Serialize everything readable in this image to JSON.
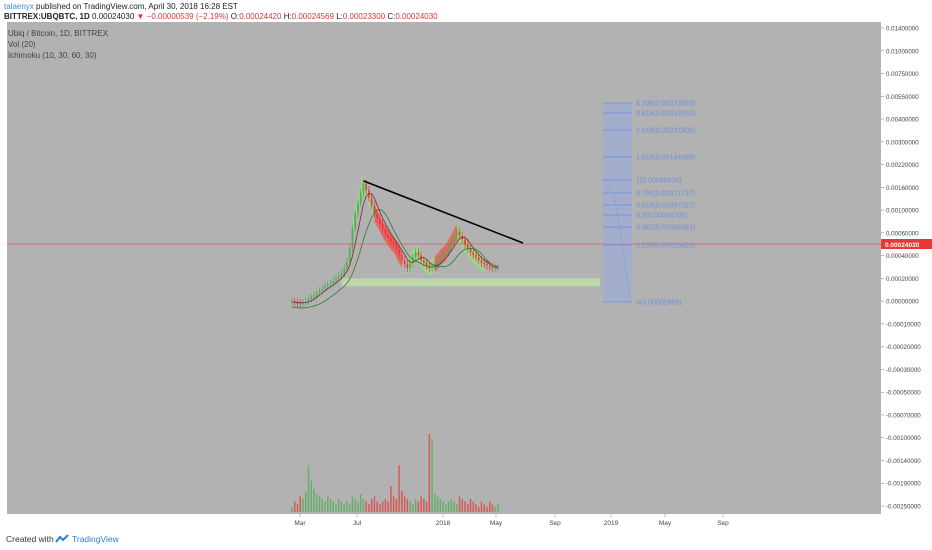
{
  "header": {
    "author": "talaenyx",
    "published_text": "published on TradingView.com, April 30, 2018 16:28 EST",
    "symbol": "BITTREX:UBQBTC, 1D",
    "last": "0.00024030",
    "change": "▼ −0.00000539 (−2.19%)",
    "o_label": "O:",
    "o": "0.00024420",
    "h_label": "H:",
    "h": "0.00024569",
    "l_label": "L:",
    "l": "0.00023300",
    "c_label": "C:",
    "c": "0.00024030"
  },
  "legend": {
    "title": "Ubiq / Bitcoin, 1D, BITTREX",
    "vol": "Vol (20)",
    "ichimoku": "Ichimoku (10, 30, 60, 30)"
  },
  "colors": {
    "background": "#b2b2b2",
    "up": "#4caf50",
    "down": "#e53935",
    "cloud_up": "#9bd68a",
    "cloud_down": "#ef5b5b",
    "fib": "#6b8fe0",
    "fib_fill": "#8fa9ea",
    "trendline": "#000000",
    "price_line": "#e53935",
    "support_zone": "#bfe4a8"
  },
  "chart_data": {
    "type": "candlestick",
    "x_tick_labels": [
      "Mar",
      "Jul",
      "2018",
      "May",
      "Sep",
      "2019",
      "May",
      "Sep"
    ],
    "y_tick_labels": [
      "0.01400000",
      "0.01000000",
      "0.00750000",
      "0.00550000",
      "0.00400000",
      "0.00300000",
      "0.00220000",
      "0.00160000",
      "0.00100000",
      "0.00060000",
      "0.00040000",
      "0.00020000",
      "0.00000000",
      "-0.00010000",
      "-0.00020000",
      "-0.00030000",
      "-0.00050000",
      "-0.00070000",
      "-0.00100000",
      "-0.00140000",
      "-0.00190000",
      "-0.00250000"
    ],
    "current_price": "0.00024030",
    "fib_levels": [
      {
        "label": "4.236(0.00373389)"
      },
      {
        "label": "3.618(0.00319350)"
      },
      {
        "label": "2.618(0.00231909)"
      },
      {
        "label": "1.618(0.00144468)"
      },
      {
        "label": "1(0.00090430)"
      },
      {
        "label": "0.786(0.00071717)"
      },
      {
        "label": "0.618(0.00057027)"
      },
      {
        "label": "0.5(0.00046709)"
      },
      {
        "label": "0.382(0.00036391)"
      },
      {
        "label": "0.236(0.00023625)"
      },
      {
        "label": "0(0.00002989)"
      }
    ],
    "price_series": [
      4,
      3.5,
      3,
      2.6,
      3.2,
      4.5,
      6,
      7.5,
      9,
      11,
      12.5,
      14,
      16,
      17,
      18,
      20,
      22,
      24,
      26,
      30,
      35,
      45,
      60,
      72,
      80,
      88,
      95,
      90,
      84,
      78,
      72,
      68,
      64,
      60,
      56,
      53,
      50,
      48,
      44,
      40,
      36,
      33,
      30,
      34,
      38,
      42,
      40,
      36,
      34,
      32,
      30,
      31,
      33,
      35,
      38,
      40,
      42,
      46,
      50,
      54,
      58,
      55,
      52,
      48,
      45,
      42,
      40,
      38,
      36,
      34,
      33,
      32,
      31,
      30,
      30.5,
      31
    ],
    "volume_series": [
      2,
      4,
      3,
      6,
      5,
      8,
      18,
      12,
      9,
      7,
      6,
      5,
      4,
      6,
      5,
      4,
      3,
      5,
      4,
      3,
      4,
      3,
      6,
      5,
      4,
      7,
      5,
      4,
      3,
      5,
      6,
      4,
      3,
      4,
      5,
      4,
      10,
      6,
      5,
      18,
      8,
      6,
      5,
      4,
      3,
      5,
      4,
      6,
      5,
      4,
      30,
      28,
      7,
      6,
      5,
      4,
      3,
      4,
      5,
      4,
      3,
      6,
      5,
      4,
      3,
      5,
      4,
      3,
      2,
      4,
      3,
      2,
      4,
      3,
      2,
      3
    ]
  },
  "footer": {
    "created_with": "Created with",
    "brand": "TradingView"
  }
}
